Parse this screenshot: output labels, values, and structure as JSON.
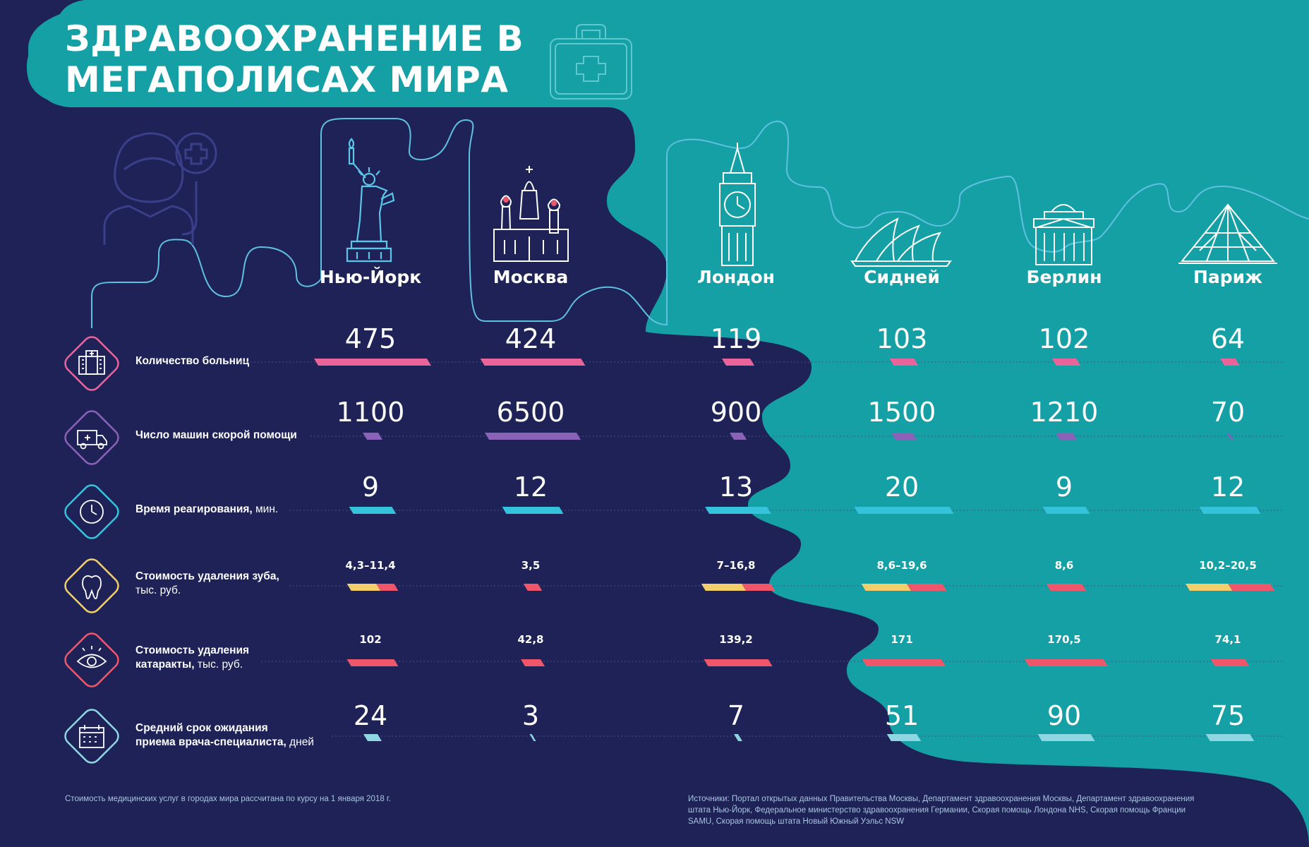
{
  "title_lines": [
    "ЗДРАВООХРАНЕНИЕ В",
    "МЕГАПОЛИСАХ МИРА"
  ],
  "cities": [
    "Нью-Йорк",
    "Москва",
    "Лондон",
    "Сидней",
    "Берлин",
    "Париж"
  ],
  "colors": {
    "navy": "#1e2257",
    "teal": "#15a0a6",
    "pink": "#e8649a",
    "purple": "#8a62b8",
    "cyan": "#35c3dc",
    "yellow": "#f2cf6a",
    "red": "#f0566a",
    "light_cyan": "#8fd6e3"
  },
  "chart_data": {
    "type": "table",
    "categories": [
      "Нью-Йорк",
      "Москва",
      "Лондон",
      "Сидней",
      "Берлин",
      "Париж"
    ],
    "rows": [
      {
        "label_bold": "Количество больниц",
        "label_rest": "",
        "icon": "hospital-building-icon",
        "values": [
          475,
          424,
          119,
          103,
          102,
          64
        ],
        "display": [
          "475",
          "424",
          "119",
          "103",
          "102",
          "64"
        ]
      },
      {
        "label_bold": "Число машин скорой помощи",
        "label_rest": "",
        "icon": "ambulance-icon",
        "values": [
          1100,
          6500,
          900,
          1500,
          1210,
          70
        ],
        "display": [
          "1100",
          "6500",
          "900",
          "1500",
          "1210",
          "70"
        ]
      },
      {
        "label_bold": "Время реагирования,",
        "label_rest": " мин.",
        "icon": "clock-icon",
        "values": [
          9,
          12,
          13,
          20,
          9,
          12
        ],
        "display": [
          "9",
          "12",
          "13",
          "20",
          "9",
          "12"
        ]
      },
      {
        "label_bold": "Стоимость удаления зуба,",
        "label_rest": "тыс. руб.",
        "icon": "tooth-icon",
        "values": [
          [
            4.3,
            11.4
          ],
          [
            3.5,
            3.5
          ],
          [
            7,
            16.8
          ],
          [
            8.6,
            19.6
          ],
          [
            8.6,
            8.6
          ],
          [
            10.2,
            20.5
          ]
        ],
        "display": [
          "4,3–11,4",
          "3,5",
          "7–16,8",
          "8,6–19,6",
          "8,6",
          "10,2–20,5"
        ]
      },
      {
        "label_bold": "Стоимость удаления",
        "label_rest": "катаракты, тыс. руб.",
        "label_mixed": true,
        "icon": "eye-icon",
        "values": [
          102,
          42.8,
          139.2,
          171,
          170.5,
          74.1
        ],
        "display": [
          "102",
          "42,8",
          "139,2",
          "171",
          "170,5",
          "74,1"
        ]
      },
      {
        "label_bold": "Средний срок ожидания",
        "label_bold2": "приема врача-специалиста,",
        "label_rest": " дней",
        "icon": "calendar-icon",
        "values": [
          24,
          3,
          7,
          51,
          90,
          75
        ],
        "display": [
          "24",
          "3",
          "7",
          "51",
          "90",
          "75"
        ]
      }
    ]
  },
  "footnote": "Стоимость медицинских услуг в городах мира рассчитана по курсу на 1 января 2018 г.",
  "sources": [
    "Источники: Портал открытых данных Правительства Москвы, Департамент здравоохранения Москвы, Департамент здравоохранения",
    "штата Нью-Йорк, Федеральное министерство здравоохранения Германии, Скорая помощь Лондона NHS, Скорая помощь Франции",
    "SAMU, Скорая помощь штата Новый Южный Уэльс NSW"
  ]
}
